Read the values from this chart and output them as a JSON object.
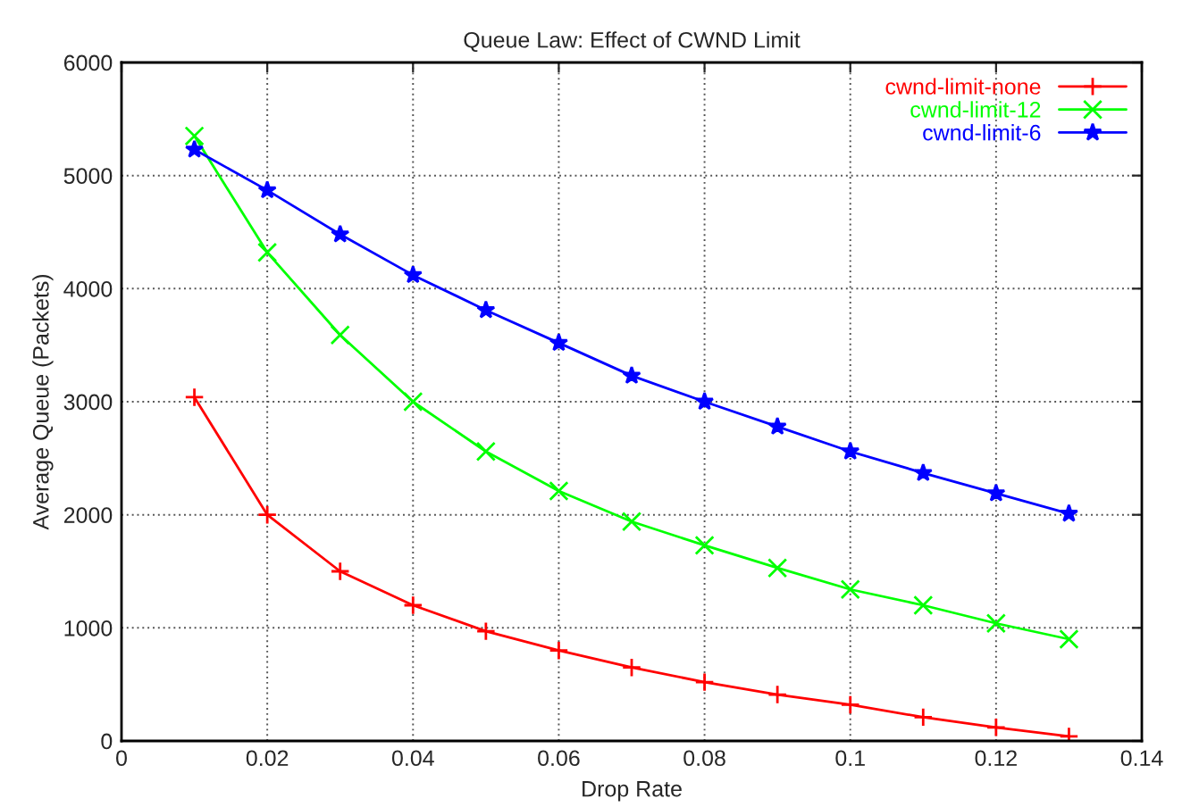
{
  "chart_data": {
    "type": "line",
    "title": "Queue Law: Effect of CWND Limit",
    "xlabel": "Drop Rate",
    "ylabel": "Average Queue (Packets)",
    "x": [
      0.01,
      0.02,
      0.03,
      0.04,
      0.05,
      0.06,
      0.07,
      0.08,
      0.09,
      0.1,
      0.11,
      0.12,
      0.13
    ],
    "series": [
      {
        "name": "cwnd-limit-none",
        "color": "#ff0000",
        "marker": "plus",
        "values": [
          3040,
          2000,
          1500,
          1200,
          970,
          800,
          650,
          520,
          410,
          320,
          210,
          120,
          40
        ]
      },
      {
        "name": "cwnd-limit-12",
        "color": "#00ff00",
        "marker": "cross",
        "values": [
          5350,
          4320,
          3590,
          3000,
          2560,
          2210,
          1940,
          1730,
          1530,
          1340,
          1200,
          1040,
          900
        ]
      },
      {
        "name": "cwnd-limit-6",
        "color": "#0000ff",
        "marker": "star",
        "values": [
          5230,
          4870,
          4480,
          4120,
          3810,
          3520,
          3230,
          3000,
          2780,
          2560,
          2370,
          2190,
          2010
        ]
      }
    ],
    "xlim": [
      0,
      0.14
    ],
    "xticks": [
      0,
      0.02,
      0.04,
      0.06,
      0.08,
      0.1,
      0.12,
      0.14
    ],
    "ylim": [
      0,
      6000
    ],
    "yticks": [
      0,
      1000,
      2000,
      3000,
      4000,
      5000,
      6000
    ],
    "grid": true,
    "legend": "top right",
    "line_style": "solid"
  }
}
